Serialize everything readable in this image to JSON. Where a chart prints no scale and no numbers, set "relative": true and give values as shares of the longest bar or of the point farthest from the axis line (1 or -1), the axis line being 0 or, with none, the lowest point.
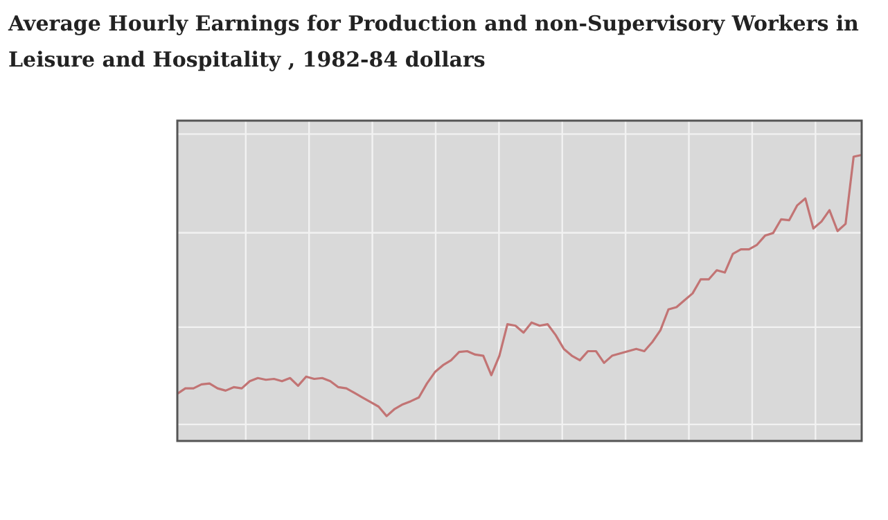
{
  "chart_data": {
    "type": "line",
    "title": "Average Hourly Earnings for Production and non-Supervisory Workers in Leisure and Hospitality , 1982-84 dollars",
    "relative": true,
    "grid": true,
    "color": "#c27474",
    "categories": [
      null,
      null,
      null,
      null,
      null,
      null,
      null,
      null,
      null,
      null,
      null,
      null,
      null,
      null,
      null,
      null,
      null,
      null,
      null,
      null,
      null,
      null,
      null,
      null,
      null,
      null,
      null,
      null,
      null,
      null,
      null,
      null,
      null,
      null,
      null,
      null,
      null,
      null,
      null,
      null,
      null,
      null,
      null,
      null,
      null,
      null,
      null,
      null,
      null,
      null,
      null,
      null,
      null,
      null,
      null,
      null,
      null,
      null,
      null,
      null,
      null,
      null,
      null,
      null,
      null,
      null,
      null,
      null,
      null,
      null,
      null,
      null,
      null,
      null,
      null,
      null,
      null,
      null,
      null,
      null,
      null,
      null,
      null,
      null,
      null,
      null
    ],
    "values": [
      0.165,
      0.184,
      0.184,
      0.198,
      0.201,
      0.184,
      0.176,
      0.188,
      0.184,
      0.209,
      0.22,
      0.214,
      0.217,
      0.209,
      0.22,
      0.193,
      0.225,
      0.217,
      0.22,
      0.209,
      0.188,
      0.184,
      0.168,
      0.152,
      0.136,
      0.12,
      0.087,
      0.112,
      0.128,
      0.139,
      0.152,
      0.201,
      0.241,
      0.265,
      0.282,
      0.311,
      0.314,
      0.302,
      0.298,
      0.23,
      0.298,
      0.408,
      0.403,
      0.379,
      0.414,
      0.403,
      0.408,
      0.37,
      0.322,
      0.298,
      0.282,
      0.314,
      0.314,
      0.273,
      0.298,
      0.306,
      0.314,
      0.322,
      0.314,
      0.346,
      0.387,
      0.46,
      0.468,
      0.492,
      0.516,
      0.565,
      0.565,
      0.597,
      0.589,
      0.654,
      0.67,
      0.67,
      0.686,
      0.718,
      0.727,
      0.775,
      0.772,
      0.824,
      0.848,
      0.743,
      0.767,
      0.807,
      0.734,
      0.759,
      0.994,
      1.0
    ]
  }
}
